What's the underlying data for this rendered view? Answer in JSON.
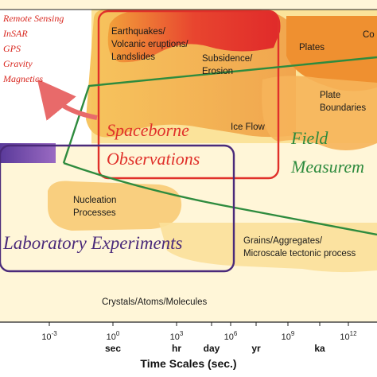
{
  "methods": [
    "Remote Sensing",
    "InSAR",
    "GPS",
    "Gravity",
    "Magnetics"
  ],
  "regions": {
    "earthquakes": [
      "Earthquakes/",
      "Volcanic eruptions/",
      "Landslides"
    ],
    "subsidence": [
      "Subsidence/",
      "Erosion"
    ],
    "plates": "Plates",
    "plate_boundaries": [
      "Plate",
      "Boundaries"
    ],
    "core": "Co",
    "ice_flow": "Ice Flow",
    "nucleation": [
      "Nucleation",
      "Processes"
    ],
    "grains": [
      "Grains/Aggregates/",
      "Microscale tectonic process"
    ],
    "crystals": "Crystals/Atoms/Molecules"
  },
  "observations": {
    "spaceborne": [
      "Spaceborne",
      "Observations"
    ],
    "field": [
      "Field",
      "Measurem"
    ],
    "laboratory": "Laboratory Experiments"
  },
  "axis": {
    "title": "Time Scales (sec.)",
    "ticks": [
      {
        "base": "10",
        "exp": "-3",
        "unit": ""
      },
      {
        "base": "10",
        "exp": "0",
        "unit": "sec"
      },
      {
        "base": "10",
        "exp": "3",
        "unit": "hr"
      },
      {
        "base": "",
        "exp": "",
        "unit": "day"
      },
      {
        "base": "10",
        "exp": "6",
        "unit": ""
      },
      {
        "base": "",
        "exp": "",
        "unit": "yr"
      },
      {
        "base": "10",
        "exp": "9",
        "unit": ""
      },
      {
        "base": "",
        "exp": "",
        "unit": "ka"
      },
      {
        "base": "10",
        "exp": "12",
        "unit": ""
      }
    ]
  },
  "colors": {
    "spaceborne": "#e0302a",
    "field": "#2e8b3e",
    "laboratory": "#4a2a7a",
    "arrow": "#e86a6a"
  }
}
